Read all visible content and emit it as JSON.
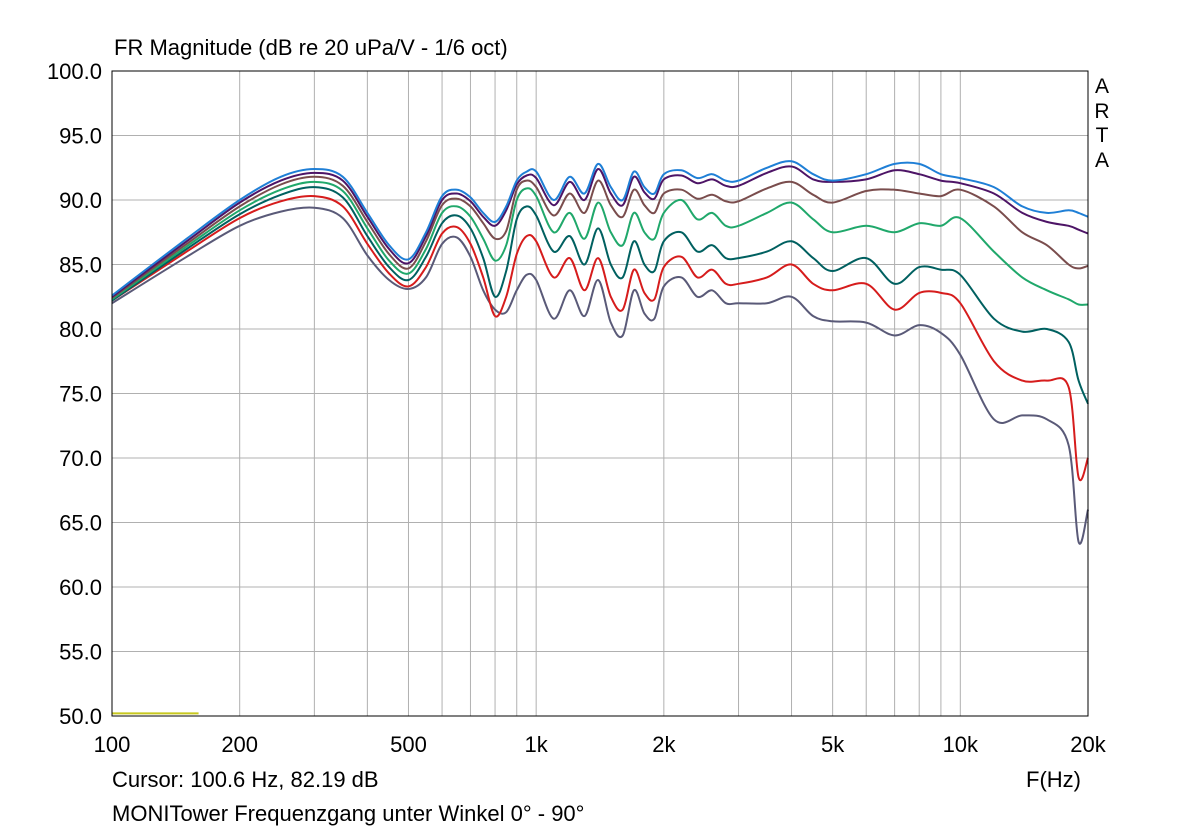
{
  "title": "FR Magnitude (dB re 20 uPa/V - 1/6 oct)",
  "brand": [
    "A",
    "R",
    "T",
    "A"
  ],
  "cursor_text": "Cursor: 100.6 Hz, 82.19 dB",
  "x_unit_label": "F(Hz)",
  "footer": "MONITower Frequenzgang unter Winkel 0° - 90°",
  "chart_data": {
    "type": "line",
    "x_scale": "log",
    "xlim": [
      100,
      20000
    ],
    "ylim": [
      50,
      100
    ],
    "grid": true,
    "y_ticks": [
      50,
      55,
      60,
      65,
      70,
      75,
      80,
      85,
      90,
      95,
      100
    ],
    "y_tick_labels": [
      "50.0",
      "55.0",
      "60.0",
      "65.0",
      "70.0",
      "75.0",
      "80.0",
      "85.0",
      "90.0",
      "95.0",
      "100.0"
    ],
    "x_ticks": [
      100,
      200,
      500,
      1000,
      2000,
      5000,
      10000,
      20000
    ],
    "x_tick_labels": [
      "100",
      "200",
      "500",
      "1k",
      "2k",
      "5k",
      "10k",
      "20k"
    ],
    "cursor_marker": {
      "x": [
        100,
        160
      ],
      "y": 50.2,
      "color": "#c8c81e"
    },
    "x": [
      100,
      150,
      200,
      250,
      300,
      350,
      400,
      450,
      500,
      550,
      600,
      650,
      700,
      750,
      800,
      850,
      900,
      950,
      1000,
      1100,
      1200,
      1300,
      1400,
      1500,
      1600,
      1700,
      1800,
      1900,
      2000,
      2200,
      2400,
      2600,
      2800,
      3000,
      3500,
      4000,
      4500,
      5000,
      6000,
      7000,
      8000,
      9000,
      10000,
      12000,
      14000,
      16000,
      18000,
      19000,
      20000
    ],
    "series": [
      {
        "color": "#1f7fd6",
        "values": [
          82.6,
          87.0,
          90.0,
          91.8,
          92.4,
          91.8,
          89.0,
          86.5,
          85.4,
          87.5,
          90.3,
          90.8,
          90.2,
          89.0,
          88.3,
          89.5,
          91.5,
          92.2,
          92.2,
          90.0,
          91.8,
          90.5,
          92.8,
          91.0,
          90.0,
          92.2,
          91.0,
          90.5,
          92.0,
          92.3,
          91.7,
          92.0,
          91.5,
          91.5,
          92.5,
          93.0,
          92.0,
          91.5,
          92.0,
          92.8,
          92.8,
          92.0,
          91.7,
          91.0,
          89.5,
          89.0,
          89.2,
          89.0,
          88.7
        ]
      },
      {
        "color": "#4d1466",
        "values": [
          82.5,
          86.8,
          89.8,
          91.5,
          92.1,
          91.5,
          88.7,
          86.2,
          85.1,
          87.2,
          90.0,
          90.5,
          89.9,
          88.7,
          88.0,
          89.2,
          91.2,
          91.9,
          91.7,
          89.6,
          91.4,
          90.0,
          92.4,
          90.5,
          89.6,
          91.8,
          90.6,
          90.1,
          91.6,
          91.9,
          91.3,
          91.6,
          91.1,
          91.1,
          92.1,
          92.6,
          91.6,
          91.4,
          91.6,
          92.3,
          92.0,
          91.5,
          91.3,
          90.5,
          89.0,
          88.3,
          88.0,
          87.7,
          87.4
        ]
      },
      {
        "color": "#7a4d4d",
        "values": [
          82.4,
          86.6,
          89.5,
          91.2,
          91.8,
          91.1,
          88.3,
          85.8,
          84.7,
          86.8,
          89.6,
          90.1,
          89.5,
          88.2,
          87.0,
          87.6,
          90.8,
          91.5,
          91.0,
          88.8,
          90.5,
          89.0,
          91.5,
          89.6,
          88.7,
          90.8,
          89.6,
          89.0,
          90.5,
          90.8,
          90.1,
          90.4,
          89.9,
          89.9,
          90.9,
          91.4,
          90.4,
          89.8,
          90.7,
          90.8,
          90.5,
          90.3,
          90.8,
          89.5,
          87.5,
          86.5,
          85.0,
          84.7,
          84.9
        ]
      },
      {
        "color": "#20a86b",
        "values": [
          82.3,
          86.4,
          89.2,
          90.8,
          91.4,
          90.7,
          87.8,
          85.3,
          84.3,
          86.2,
          89.0,
          89.5,
          88.7,
          87.0,
          85.3,
          86.5,
          90.0,
          90.9,
          90.3,
          87.5,
          89.0,
          87.0,
          89.8,
          87.5,
          86.5,
          89.0,
          87.5,
          87.0,
          89.0,
          90.0,
          88.5,
          89.0,
          88.0,
          88.0,
          89.0,
          89.8,
          88.5,
          87.5,
          88.0,
          87.5,
          88.2,
          88.0,
          88.6,
          86.0,
          84.0,
          83.0,
          82.3,
          81.9,
          81.9
        ]
      },
      {
        "color": "#006060",
        "values": [
          82.2,
          86.2,
          88.9,
          90.4,
          91.0,
          90.2,
          87.2,
          84.8,
          83.8,
          85.6,
          88.2,
          88.8,
          87.8,
          85.5,
          82.5,
          84.5,
          88.5,
          89.5,
          88.8,
          86.0,
          87.2,
          85.0,
          87.8,
          85.0,
          84.0,
          86.8,
          85.0,
          84.5,
          86.8,
          87.5,
          86.0,
          86.5,
          85.5,
          85.5,
          86.0,
          86.8,
          85.5,
          84.5,
          85.5,
          83.5,
          84.8,
          84.6,
          84.2,
          80.8,
          79.8,
          80.0,
          79.0,
          76.0,
          74.2
        ]
      },
      {
        "color": "#d61c1c",
        "values": [
          82.2,
          86.0,
          88.6,
          89.9,
          90.3,
          89.5,
          86.6,
          84.3,
          83.3,
          84.8,
          87.4,
          87.9,
          86.6,
          84.0,
          81.0,
          82.5,
          85.8,
          87.2,
          86.8,
          84.0,
          85.5,
          83.0,
          85.5,
          82.5,
          81.5,
          84.6,
          82.8,
          82.3,
          84.8,
          85.6,
          84.0,
          84.6,
          83.5,
          83.5,
          84.0,
          85.0,
          83.5,
          83.0,
          83.5,
          81.5,
          82.8,
          82.8,
          82.0,
          77.5,
          76.0,
          76.0,
          75.5,
          68.5,
          70.0
        ]
      },
      {
        "color": "#5a5a78",
        "values": [
          82.0,
          85.6,
          88.0,
          89.1,
          89.4,
          88.6,
          85.7,
          83.8,
          83.1,
          84.0,
          86.6,
          87.1,
          85.6,
          83.0,
          81.5,
          81.3,
          83.0,
          84.2,
          83.8,
          80.8,
          83.0,
          81.0,
          83.8,
          80.5,
          79.5,
          83.0,
          81.2,
          80.8,
          83.3,
          84.0,
          82.5,
          83.0,
          82.0,
          82.0,
          82.0,
          82.5,
          81.0,
          80.6,
          80.5,
          79.5,
          80.3,
          79.7,
          78.0,
          73.0,
          73.3,
          73.0,
          71.0,
          63.5,
          66.0
        ]
      }
    ]
  }
}
